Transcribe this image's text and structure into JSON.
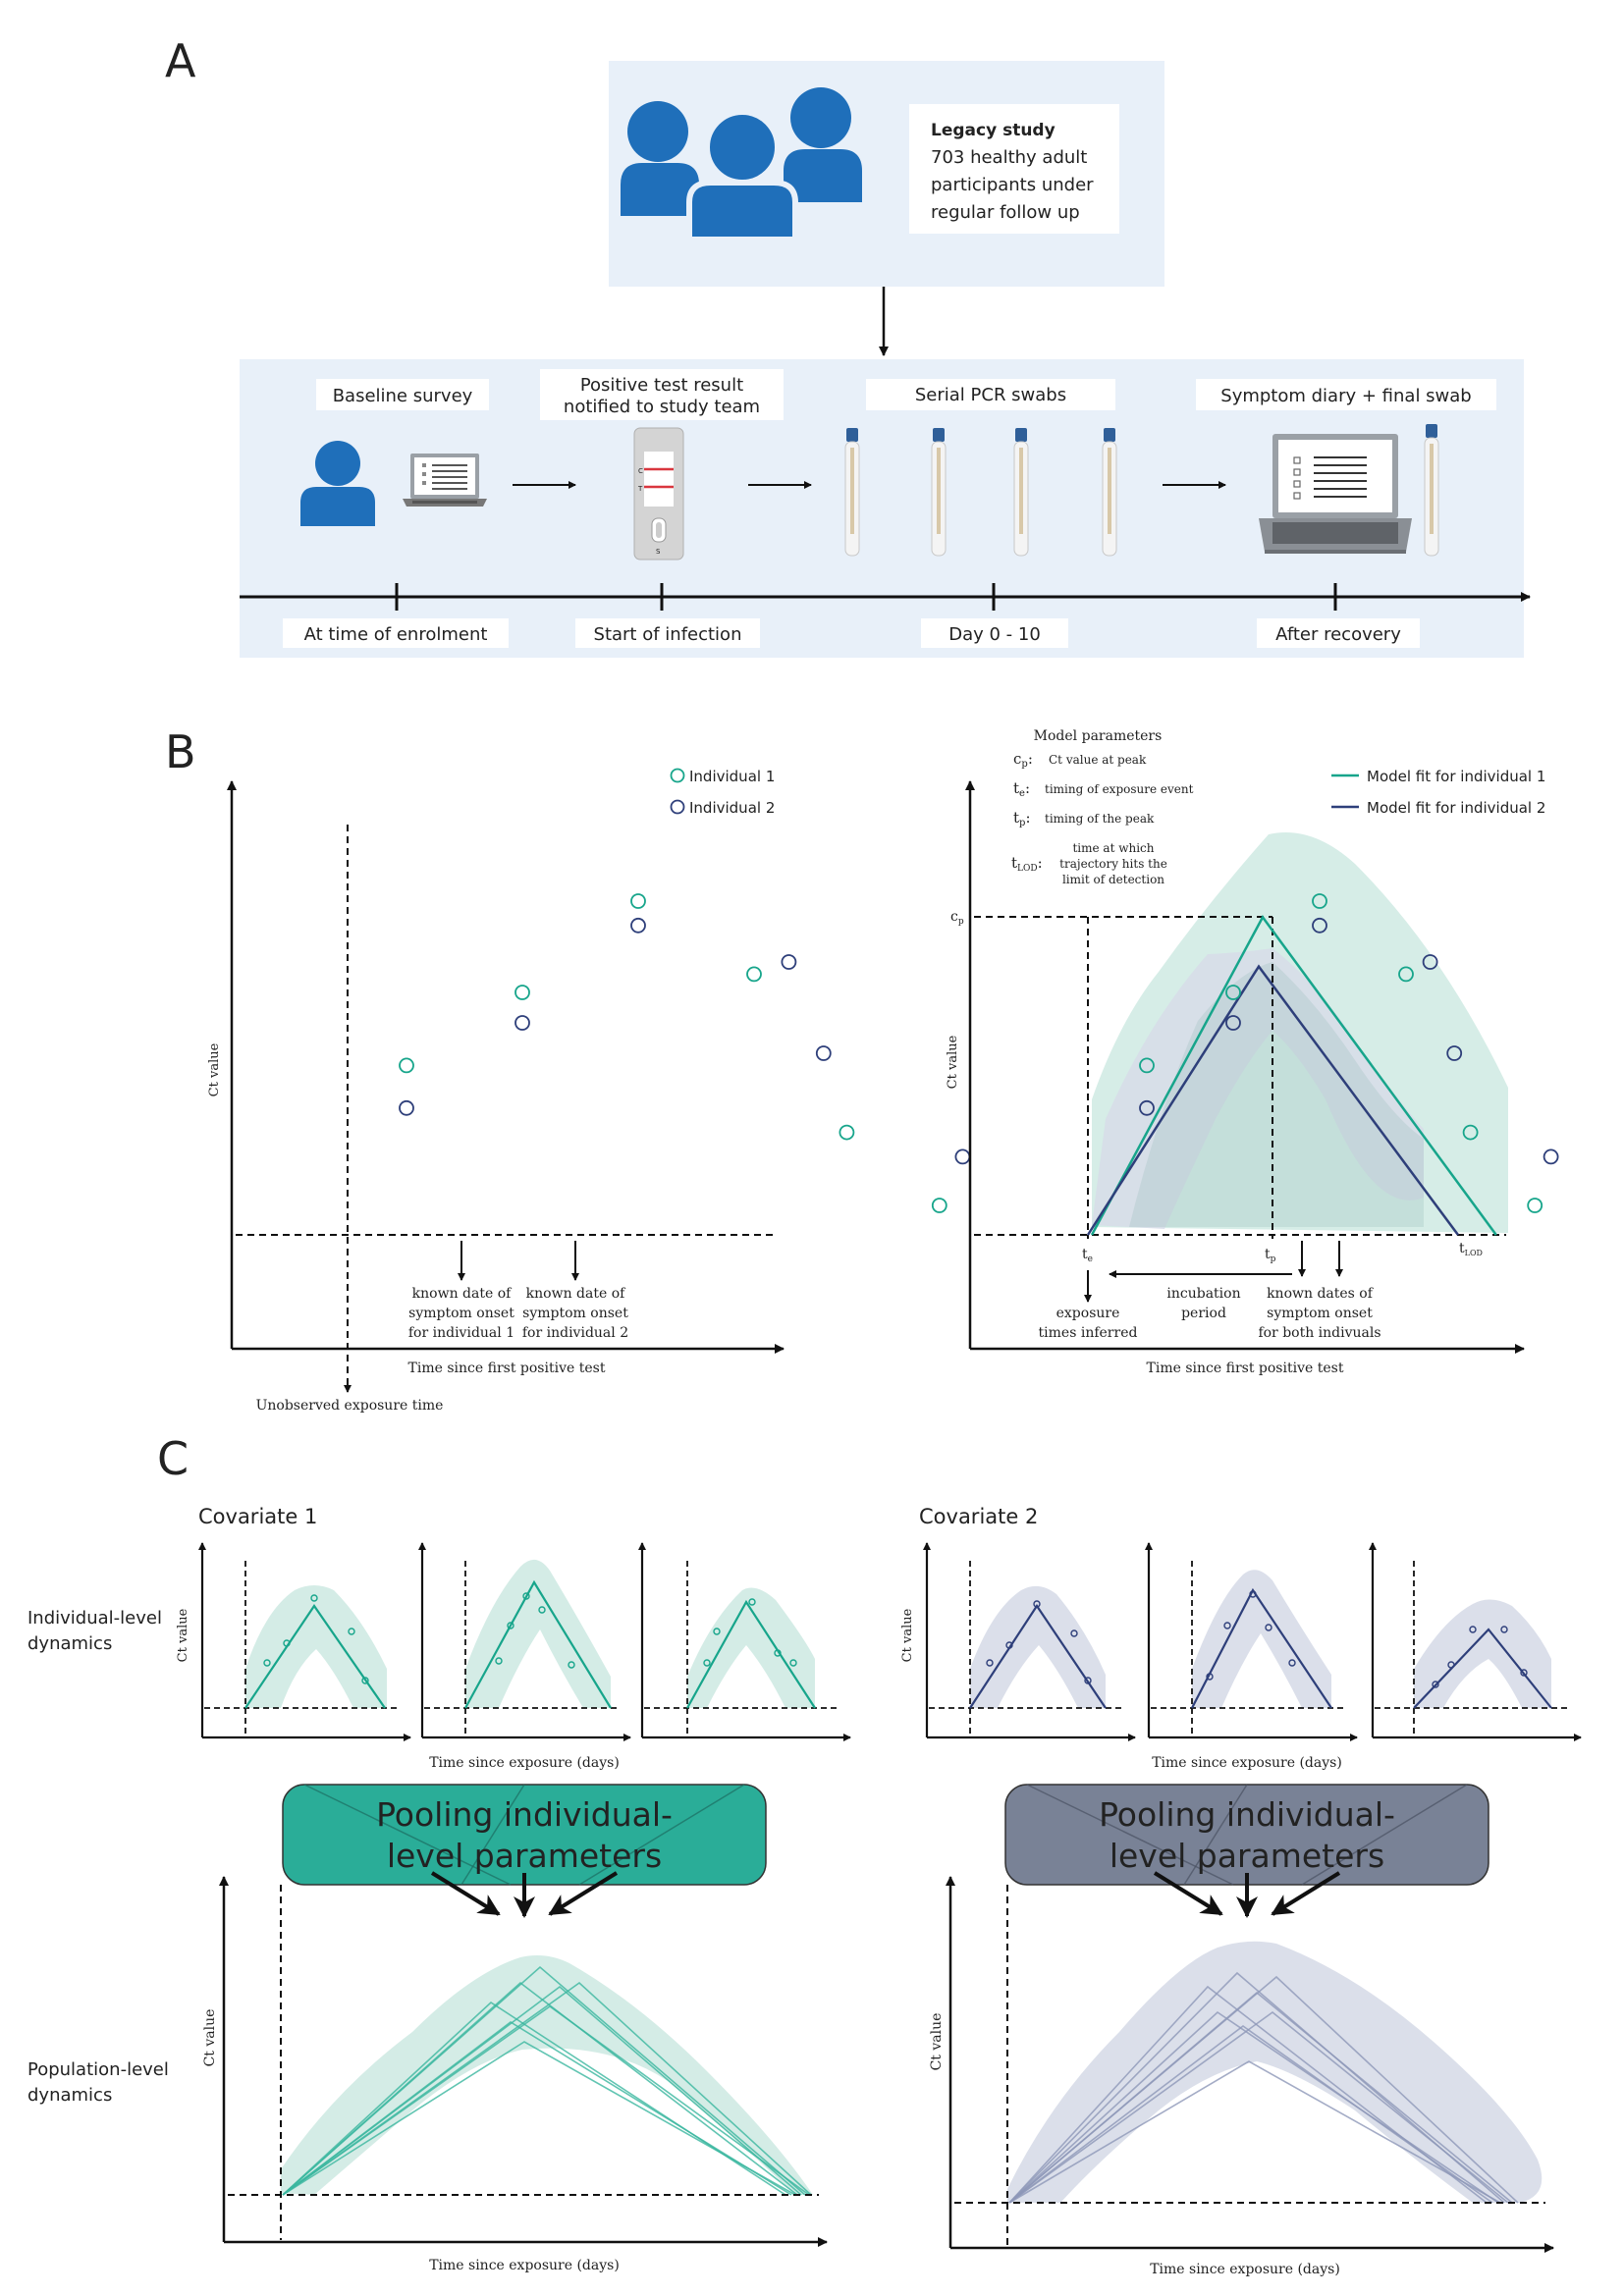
{
  "panels": {
    "a": "A",
    "b": "B",
    "c": "C"
  },
  "panel_a": {
    "legacy_title": "Legacy study",
    "legacy_lines": [
      "703 healthy adult",
      "participants under",
      "regular follow up"
    ],
    "steps": [
      {
        "label": "Baseline survey"
      },
      {
        "label_lines": [
          "Positive test result",
          "notified to study team"
        ]
      },
      {
        "label": "Serial PCR swabs"
      },
      {
        "label": "Symptom diary + final swab"
      }
    ],
    "timeline": [
      "At time of enrolment",
      "Start of infection",
      "Day 0 - 10",
      "After recovery"
    ],
    "test_letters": {
      "c": "C",
      "t": "T",
      "s": "S"
    }
  },
  "panel_b_left": {
    "ylabel": "Ct value",
    "xlabel": "Time since first positive test",
    "legend": [
      "Individual 1",
      "Individual 2"
    ],
    "onset1": [
      "known date of",
      "symptom onset",
      "for individual 1"
    ],
    "onset2": [
      "known date of",
      "symptom onset",
      "for individual 2"
    ],
    "exposure": "Unobserved exposure time"
  },
  "panel_b_right": {
    "params_title": "Model parameters",
    "params": [
      {
        "sym": "c",
        "sub": "p",
        "desc": "Ct value at peak"
      },
      {
        "sym": "t",
        "sub": "e",
        "desc": "timing of exposure event"
      },
      {
        "sym": "t",
        "sub": "p",
        "desc": "timing of the peak"
      },
      {
        "sym": "t",
        "sub": "LOD",
        "desc_lines": [
          "time at which",
          "trajectory hits the",
          "limit of detection"
        ]
      }
    ],
    "legend": [
      "Model fit for individual 1",
      "Model fit for individual 2"
    ],
    "ylabel": "Ct value",
    "xlabel": "Time since first positive test",
    "axis_marks": {
      "cp": "c",
      "cp_sub": "p",
      "te": "t",
      "te_sub": "e",
      "tp": "t",
      "tp_sub": "p",
      "tlod": "t",
      "tlod_sub": "LOD"
    },
    "exposure_inferred": [
      "exposure",
      "times inferred"
    ],
    "incubation": [
      "incubation",
      "period"
    ],
    "known_dates": [
      "known dates of",
      "symptom onset",
      "for both indivuals"
    ]
  },
  "panel_c": {
    "covariate1": "Covariate 1",
    "covariate2": "Covariate 2",
    "row1": [
      "Individual-level",
      "dynamics"
    ],
    "row2": [
      "Population-level",
      "dynamics"
    ],
    "ylabel": "Ct value",
    "xlabel_small": "Time since exposure (days)",
    "xlabel_big": "Time since exposure (days)",
    "pool_lines": [
      "Pooling individual-",
      "level parameters"
    ]
  },
  "colors": {
    "green": "#17a58b",
    "green_band": "#cfeae3",
    "navy": "#2e3f7a",
    "navy_band": "#d7dbe8",
    "panel_bg": "#e8f0f9",
    "people_blue": "#1f6fba",
    "pool_green": "#2aad98",
    "pool_navy": "#798296"
  },
  "chart_data": [
    {
      "type": "scatter",
      "xlabel": "Time since first positive test",
      "ylabel": "Ct value",
      "series": [
        {
          "name": "Individual 1",
          "x": [
            1,
            2,
            3,
            4,
            4.8,
            5.6
          ],
          "y": [
            2.3,
            3.5,
            5.0,
            3.8,
            1.2,
            0
          ]
        },
        {
          "name": "Individual 2",
          "x": [
            1,
            2,
            3,
            4.3,
            4.6,
            5.8
          ],
          "y": [
            1.6,
            3.0,
            4.6,
            4.0,
            2.5,
            0.8
          ]
        }
      ]
    },
    {
      "type": "line",
      "xlabel": "Time since first positive test",
      "ylabel": "Ct value",
      "series": [
        {
          "name": "Model fit for individual 1",
          "x": [
            0,
            3,
            7.1
          ],
          "y": [
            0,
            5.8,
            0
          ]
        },
        {
          "name": "Model fit for individual 2",
          "x": [
            0,
            3,
            6.5
          ],
          "y": [
            0,
            4.9,
            0
          ]
        }
      ]
    }
  ]
}
